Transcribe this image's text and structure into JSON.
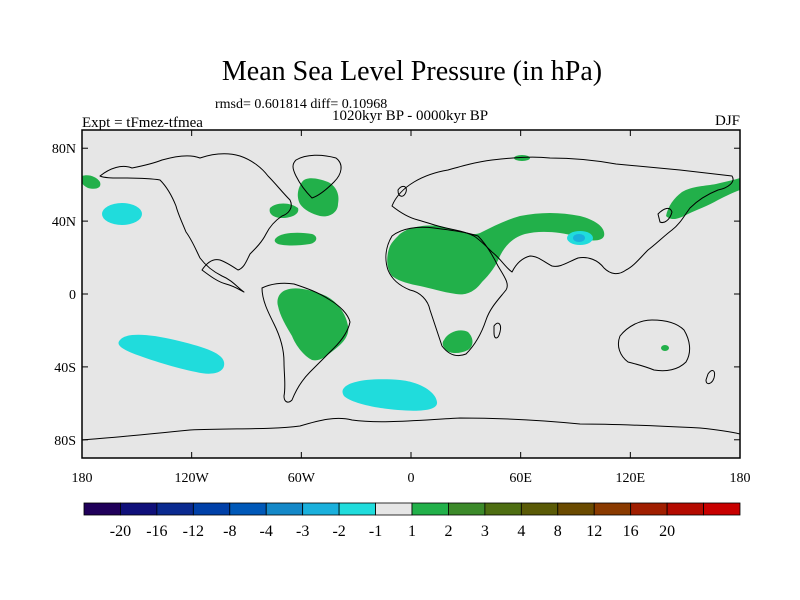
{
  "chart_data": {
    "type": "heatmap",
    "title": "Mean Sea Level Pressure (in hPa)",
    "stats_line": "rmsd= 0.601814 diff= 0.10968",
    "period": "1020kyr BP - 0000kyr BP",
    "experiment": "Expt = tFmez-tfmea",
    "season": "DJF",
    "xlim": [
      -180,
      180
    ],
    "ylim": [
      -90,
      90
    ],
    "x_ticks": [
      {
        "value": -180,
        "label": "180"
      },
      {
        "value": -120,
        "label": "120W"
      },
      {
        "value": -60,
        "label": "60W"
      },
      {
        "value": 0,
        "label": "0"
      },
      {
        "value": 60,
        "label": "60E"
      },
      {
        "value": 120,
        "label": "120E"
      },
      {
        "value": 180,
        "label": "180"
      }
    ],
    "y_ticks": [
      {
        "value": 80,
        "label": "80N"
      },
      {
        "value": 40,
        "label": "40N"
      },
      {
        "value": 0,
        "label": "0"
      },
      {
        "value": -40,
        "label": "40S"
      },
      {
        "value": -80,
        "label": "80S"
      }
    ],
    "colorbar": {
      "colors": [
        "#20005a",
        "#10107a",
        "#0a2a90",
        "#0040a8",
        "#0058b8",
        "#1488c8",
        "#1ab0dc",
        "#20dcdc",
        "#e6e6e6",
        "#22b04a",
        "#3c8a2a",
        "#4e6e12",
        "#5a5a06",
        "#6a4a00",
        "#8a3a00",
        "#a01e00",
        "#b40a00",
        "#c80000"
      ],
      "labels": [
        "-20",
        "-16",
        "-12",
        "-8",
        "-4",
        "-3",
        "-2",
        "-1",
        "1",
        "2",
        "3",
        "4",
        "8",
        "12",
        "16",
        "20"
      ]
    },
    "anomaly_regions": [
      {
        "name": "North Pacific",
        "level": "-1",
        "color": "#20dcdc",
        "center": [
          -150,
          44
        ]
      },
      {
        "name": "South Pacific",
        "level": "-1",
        "color": "#20dcdc",
        "center": [
          -135,
          -28
        ]
      },
      {
        "name": "South Atlantic",
        "level": "-1",
        "color": "#20dcdc",
        "center": [
          -12,
          -48
        ]
      },
      {
        "name": "Tibetan Plateau",
        "level": "-2",
        "color": "#1ab0dc",
        "center": [
          92,
          32
        ]
      },
      {
        "name": "North Africa - Middle East",
        "level": "1",
        "color": "#22b04a",
        "center": [
          20,
          25
        ]
      },
      {
        "name": "Central Asia",
        "level": "1",
        "color": "#22b04a",
        "center": [
          75,
          38
        ]
      },
      {
        "name": "South America",
        "level": "1",
        "color": "#22b04a",
        "center": [
          -58,
          -10
        ]
      },
      {
        "name": "Southern Africa",
        "level": "1",
        "color": "#22b04a",
        "center": [
          27,
          -25
        ]
      },
      {
        "name": "Greenland - Labrador",
        "level": "1",
        "color": "#22b04a",
        "center": [
          -50,
          52
        ]
      },
      {
        "name": "North Atlantic",
        "level": "1",
        "color": "#22b04a",
        "center": [
          -62,
          34
        ]
      },
      {
        "name": "Kamchatka - Japan",
        "level": "1",
        "color": "#22b04a",
        "center": [
          150,
          50
        ]
      },
      {
        "name": "Alaska",
        "level": "1",
        "color": "#22b04a",
        "center": [
          -178,
          60
        ]
      }
    ]
  }
}
